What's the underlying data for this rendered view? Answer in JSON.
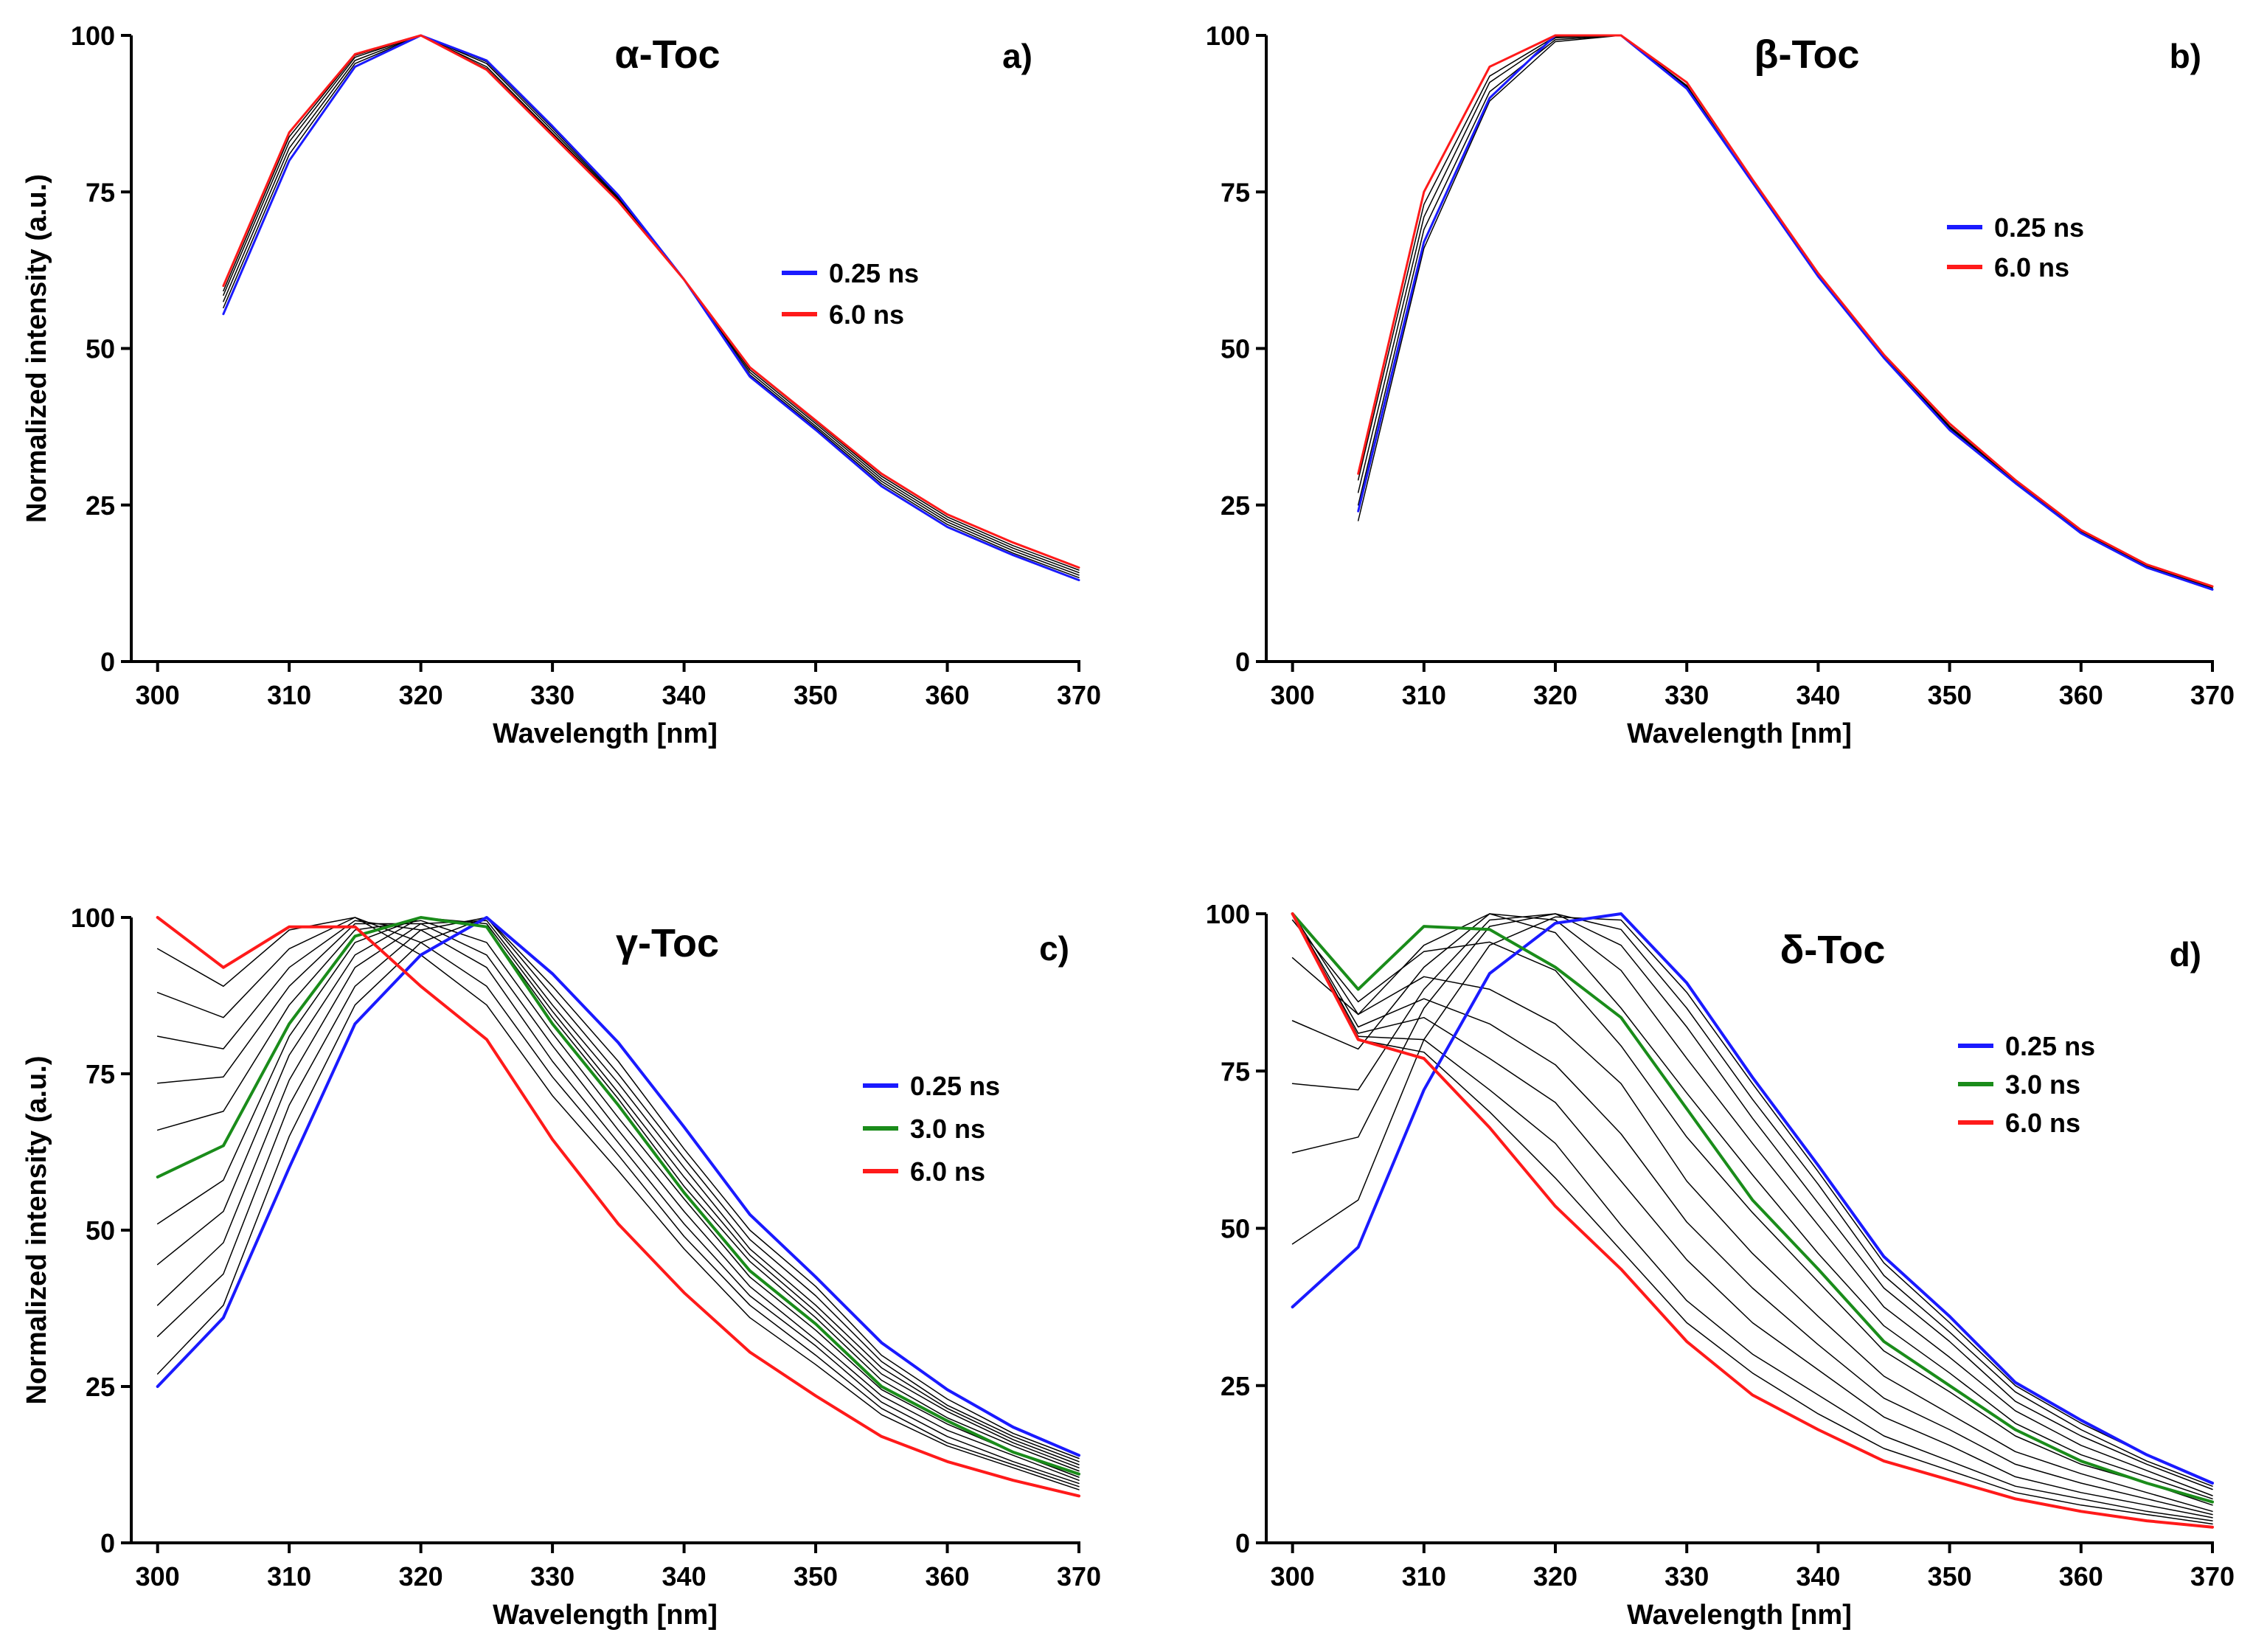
{
  "chart_data": [
    {
      "type": "line",
      "panel_label": "a)",
      "title": "α-Toc",
      "xlabel": "Wavelength [nm]",
      "ylabel": "Normalized intensity (a.u.)",
      "xlim": [
        298,
        370
      ],
      "ylim": [
        0,
        100
      ],
      "xticks": [
        "300",
        "310",
        "320",
        "330",
        "340",
        "350",
        "360",
        "370"
      ],
      "yticks": [
        "0",
        "25",
        "50",
        "75",
        "100"
      ],
      "x": [
        305,
        310,
        315,
        320,
        325,
        330,
        335,
        340,
        345,
        350,
        355,
        360,
        365,
        370
      ],
      "series": [
        {
          "name": "0.25 ns",
          "color": "#1a1aff",
          "width": 3,
          "legend": true,
          "values": [
            55.5,
            80,
            95,
            100,
            96,
            85.5,
            74.5,
            61,
            45.5,
            37,
            28,
            21.5,
            17,
            13
          ]
        },
        {
          "name": "",
          "color": "#000000",
          "width": 1.5,
          "legend": false,
          "values": [
            56.5,
            81,
            95.5,
            100,
            95.8,
            85.2,
            74.2,
            61,
            45.8,
            37.3,
            28.4,
            21.9,
            17.3,
            13.4
          ]
        },
        {
          "name": "",
          "color": "#000000",
          "width": 1.5,
          "legend": false,
          "values": [
            57.5,
            82,
            96,
            100,
            95.5,
            84.8,
            74,
            61,
            46.2,
            37.6,
            28.8,
            22.3,
            17.7,
            13.8
          ]
        },
        {
          "name": "",
          "color": "#000000",
          "width": 1.5,
          "legend": false,
          "values": [
            58.5,
            83,
            96.5,
            100,
            95,
            84.4,
            73.8,
            61,
            46.6,
            38,
            29.2,
            22.7,
            18.1,
            14.2
          ]
        },
        {
          "name": "",
          "color": "#000000",
          "width": 1.5,
          "legend": false,
          "values": [
            59.2,
            83.8,
            96.8,
            100,
            94.7,
            84.2,
            73.6,
            61,
            46.9,
            38.3,
            29.6,
            23.1,
            18.5,
            14.6
          ]
        },
        {
          "name": "6.0 ns",
          "color": "#ff1a1a",
          "width": 3,
          "legend": true,
          "values": [
            60,
            84.5,
            97,
            100,
            94.5,
            84,
            73.5,
            61,
            47,
            38.5,
            30,
            23.5,
            19,
            15
          ]
        }
      ],
      "legend_position": "center-right"
    },
    {
      "type": "line",
      "panel_label": "b)",
      "title": "β-Toc",
      "xlabel": "Wavelength [nm]",
      "ylabel": "",
      "xlim": [
        298,
        370
      ],
      "ylim": [
        0,
        100
      ],
      "xticks": [
        "300",
        "310",
        "320",
        "330",
        "340",
        "350",
        "360",
        "370"
      ],
      "yticks": [
        "0",
        "25",
        "50",
        "75",
        "100"
      ],
      "x": [
        305,
        310,
        315,
        320,
        325,
        330,
        335,
        340,
        345,
        350,
        355,
        360,
        365,
        370
      ],
      "series": [
        {
          "name": "",
          "color": "#000000",
          "width": 1.5,
          "legend": false,
          "values": [
            22.5,
            66,
            89.5,
            99,
            100,
            91.5,
            76.5,
            61.5,
            48.5,
            37,
            28.5,
            20.5,
            15,
            11.5
          ]
        },
        {
          "name": "",
          "color": "#000000",
          "width": 1.5,
          "legend": false,
          "values": [
            25,
            69,
            91,
            99.3,
            100,
            91.6,
            76.5,
            61.5,
            48.5,
            37.2,
            28.6,
            20.6,
            15.2,
            11.6
          ]
        },
        {
          "name": "",
          "color": "#000000",
          "width": 1.5,
          "legend": false,
          "values": [
            27,
            71,
            92.5,
            99.6,
            100,
            91.8,
            76.5,
            61.5,
            48.6,
            37.4,
            28.7,
            20.7,
            15.3,
            11.7
          ]
        },
        {
          "name": "",
          "color": "#000000",
          "width": 1.5,
          "legend": false,
          "values": [
            29,
            73,
            93.5,
            99.8,
            100,
            92,
            76.5,
            61.5,
            48.7,
            37.6,
            28.8,
            20.8,
            15.4,
            11.8
          ]
        },
        {
          "name": "0.25 ns",
          "color": "#1a1aff",
          "width": 3,
          "legend": true,
          "values": [
            24,
            67,
            90,
            100,
            100,
            91.5,
            76.5,
            61.5,
            48.5,
            37,
            28.5,
            20.5,
            15,
            11.5
          ]
        },
        {
          "name": "6.0 ns",
          "color": "#ff1a1a",
          "width": 3,
          "legend": true,
          "values": [
            30,
            75,
            95,
            100,
            100,
            92.5,
            77,
            62,
            49,
            38,
            29,
            21,
            15.5,
            12
          ]
        }
      ],
      "legend_position": "upper-right"
    },
    {
      "type": "line",
      "panel_label": "c)",
      "title": "γ-Toc",
      "xlabel": "Wavelength [nm]",
      "ylabel": "Normalized intensity (a.u.)",
      "xlim": [
        298,
        370
      ],
      "ylim": [
        0,
        100
      ],
      "xticks": [
        "300",
        "310",
        "320",
        "330",
        "340",
        "350",
        "360",
        "370"
      ],
      "yticks": [
        "0",
        "25",
        "50",
        "75",
        "100"
      ],
      "x": [
        300,
        305,
        310,
        315,
        320,
        325,
        330,
        335,
        340,
        345,
        350,
        355,
        360,
        365,
        370
      ],
      "series": [
        {
          "name": "",
          "color": "#000000",
          "width": 1.5,
          "legend": false,
          "values": [
            27,
            38,
            65,
            86,
            96,
            100,
            89,
            77,
            63,
            50,
            41,
            30,
            23,
            17.5,
            13.5
          ]
        },
        {
          "name": "",
          "color": "#000000",
          "width": 1.5,
          "legend": false,
          "values": [
            33,
            43,
            70,
            89,
            98,
            100,
            87.5,
            75,
            61.5,
            48.5,
            39.5,
            29,
            22,
            17,
            13
          ]
        },
        {
          "name": "",
          "color": "#000000",
          "width": 1.5,
          "legend": false,
          "values": [
            38,
            48,
            74,
            92,
            99,
            99.5,
            86,
            73.5,
            60,
            47,
            38,
            28,
            21.5,
            16.5,
            12.5
          ]
        },
        {
          "name": "",
          "color": "#000000",
          "width": 1.5,
          "legend": false,
          "values": [
            44.5,
            53,
            78,
            94,
            100,
            99,
            85,
            72,
            58.5,
            46,
            37,
            27,
            21,
            16,
            12
          ]
        },
        {
          "name": "",
          "color": "#000000",
          "width": 1.5,
          "legend": false,
          "values": [
            51,
            58,
            81,
            96,
            100,
            98.5,
            84,
            71,
            57,
            45,
            36,
            26,
            20,
            15.5,
            11.5
          ]
        },
        {
          "name": "",
          "color": "#000000",
          "width": 1.5,
          "legend": false,
          "values": [
            66,
            69,
            86,
            98,
            99.5,
            96,
            81.5,
            68,
            55,
            42.5,
            34,
            24.5,
            19,
            14.5,
            10.5
          ]
        },
        {
          "name": "",
          "color": "#000000",
          "width": 1.5,
          "legend": false,
          "values": [
            73.5,
            74.5,
            89,
            99,
            99,
            94,
            79.5,
            66,
            53,
            41,
            32.5,
            23.5,
            18,
            14,
            10
          ]
        },
        {
          "name": "",
          "color": "#000000",
          "width": 1.5,
          "legend": false,
          "values": [
            81,
            79,
            92,
            99.5,
            98,
            92,
            77,
            64,
            51,
            39.5,
            31.5,
            22.5,
            17,
            13,
            9.5
          ]
        },
        {
          "name": "",
          "color": "#000000",
          "width": 1.5,
          "legend": false,
          "values": [
            88,
            84,
            95,
            100,
            96,
            89,
            74.5,
            62,
            49,
            38,
            30,
            21.5,
            16,
            12.5,
            9
          ]
        },
        {
          "name": "",
          "color": "#000000",
          "width": 1.5,
          "legend": false,
          "values": [
            95,
            89,
            98,
            100,
            94,
            86,
            71.5,
            59.5,
            47,
            36,
            28.5,
            20.5,
            15.5,
            12,
            8.5
          ]
        },
        {
          "name": "0.25 ns",
          "color": "#1a1aff",
          "width": 4,
          "legend": true,
          "values": [
            25,
            36,
            60,
            83,
            94,
            100,
            91,
            80,
            66.5,
            52.5,
            42.5,
            32,
            24.5,
            18.5,
            14
          ]
        },
        {
          "name": "3.0 ns",
          "color": "#1a8c1a",
          "width": 4,
          "legend": true,
          "values": [
            58.5,
            63.5,
            83,
            97,
            100,
            98.5,
            83,
            70,
            56,
            43.5,
            35,
            25,
            19.5,
            14.5,
            11
          ]
        },
        {
          "name": "6.0 ns",
          "color": "#ff1a1a",
          "width": 4,
          "legend": true,
          "values": [
            100,
            92,
            98.5,
            98.5,
            89,
            80.5,
            64.5,
            51,
            40,
            30.5,
            23.5,
            17,
            13,
            10,
            7.5
          ]
        }
      ],
      "legend_position": "center-right"
    },
    {
      "type": "line",
      "panel_label": "d)",
      "title": "δ-Toc",
      "xlabel": "Wavelength [nm]",
      "ylabel": "",
      "xlim": [
        298,
        370
      ],
      "ylim": [
        0,
        100
      ],
      "xticks": [
        "300",
        "310",
        "320",
        "330",
        "340",
        "350",
        "360",
        "370"
      ],
      "yticks": [
        "0",
        "25",
        "50",
        "75",
        "100"
      ],
      "x": [
        300,
        305,
        310,
        315,
        320,
        325,
        330,
        335,
        340,
        345,
        350,
        355,
        360,
        365,
        370
      ],
      "series": [
        {
          "name": "",
          "color": "#000000",
          "width": 1.5,
          "legend": false,
          "values": [
            47.5,
            54.5,
            80,
            95,
            99.5,
            99,
            87.5,
            73,
            59,
            44.5,
            35,
            25,
            19,
            14,
            9.5
          ]
        },
        {
          "name": "",
          "color": "#000000",
          "width": 1.5,
          "legend": false,
          "values": [
            62,
            64.5,
            85,
            98,
            100,
            97.5,
            85,
            70.5,
            57,
            42.5,
            33.5,
            24,
            18,
            13,
            9
          ]
        },
        {
          "name": "",
          "color": "#000000",
          "width": 1.5,
          "legend": false,
          "values": [
            73,
            72,
            88,
            99,
            100,
            95,
            82,
            67.5,
            54,
            40.5,
            32,
            22.5,
            17,
            12.5,
            8.5
          ]
        },
        {
          "name": "",
          "color": "#000000",
          "width": 1.5,
          "legend": false,
          "values": [
            83,
            78.5,
            91.5,
            100,
            99,
            91,
            77,
            63.5,
            50.5,
            37.5,
            29.5,
            21,
            15.5,
            11.5,
            7.5
          ]
        },
        {
          "name": "",
          "color": "#000000",
          "width": 1.5,
          "legend": false,
          "values": [
            93,
            84,
            95,
            100,
            97,
            85,
            71.5,
            58.5,
            46,
            34.5,
            27,
            19,
            14,
            10.5,
            7
          ]
        },
        {
          "name": "",
          "color": "#000000",
          "width": 1.5,
          "legend": false,
          "values": [
            99,
            86,
            94,
            95.5,
            91,
            79,
            64.5,
            52.5,
            41.5,
            30.5,
            24,
            17,
            12.5,
            9.5,
            6
          ]
        },
        {
          "name": "",
          "color": "#000000",
          "width": 1.5,
          "legend": false,
          "values": [
            100,
            84,
            90,
            88,
            82.5,
            73,
            57.5,
            46,
            36,
            26.5,
            20.5,
            14.5,
            11,
            8,
            5
          ]
        },
        {
          "name": "",
          "color": "#000000",
          "width": 1.5,
          "legend": false,
          "values": [
            100,
            82,
            86.5,
            82.5,
            76,
            65,
            51,
            40.5,
            31.5,
            23,
            18,
            12.5,
            9.5,
            7,
            4.5
          ]
        },
        {
          "name": "",
          "color": "#000000",
          "width": 1.5,
          "legend": false,
          "values": [
            100,
            81,
            83.5,
            77,
            70,
            57.5,
            45,
            35,
            27.5,
            20,
            15.5,
            10.5,
            8,
            6,
            4
          ]
        },
        {
          "name": "",
          "color": "#000000",
          "width": 1.5,
          "legend": false,
          "values": [
            100,
            80.5,
            80,
            72,
            63.5,
            50.5,
            38.5,
            30,
            23.5,
            17,
            13,
            9,
            7,
            5,
            3.5
          ]
        },
        {
          "name": "",
          "color": "#000000",
          "width": 1.5,
          "legend": false,
          "values": [
            100,
            80,
            78,
            68.5,
            58,
            46.5,
            35,
            27,
            20.5,
            15,
            11.5,
            8,
            6,
            4.5,
            3
          ]
        },
        {
          "name": "0.25 ns",
          "color": "#1a1aff",
          "width": 4,
          "legend": true,
          "values": [
            37.5,
            47,
            72,
            90.5,
            98.5,
            100,
            89,
            74,
            60,
            45.5,
            36,
            25.5,
            19.5,
            14,
            9.5
          ]
        },
        {
          "name": "3.0 ns",
          "color": "#1a8c1a",
          "width": 4,
          "legend": true,
          "values": [
            100,
            88,
            98,
            97.5,
            91.5,
            83.5,
            69,
            54.5,
            43.5,
            32,
            25,
            18,
            13,
            9.5,
            6.5
          ]
        },
        {
          "name": "6.0 ns",
          "color": "#ff1a1a",
          "width": 4,
          "legend": true,
          "values": [
            100,
            80,
            77,
            66,
            53.5,
            43.5,
            32,
            23.5,
            18,
            13,
            10,
            7,
            5,
            3.5,
            2.5
          ]
        }
      ],
      "legend_position": "upper-right"
    }
  ]
}
